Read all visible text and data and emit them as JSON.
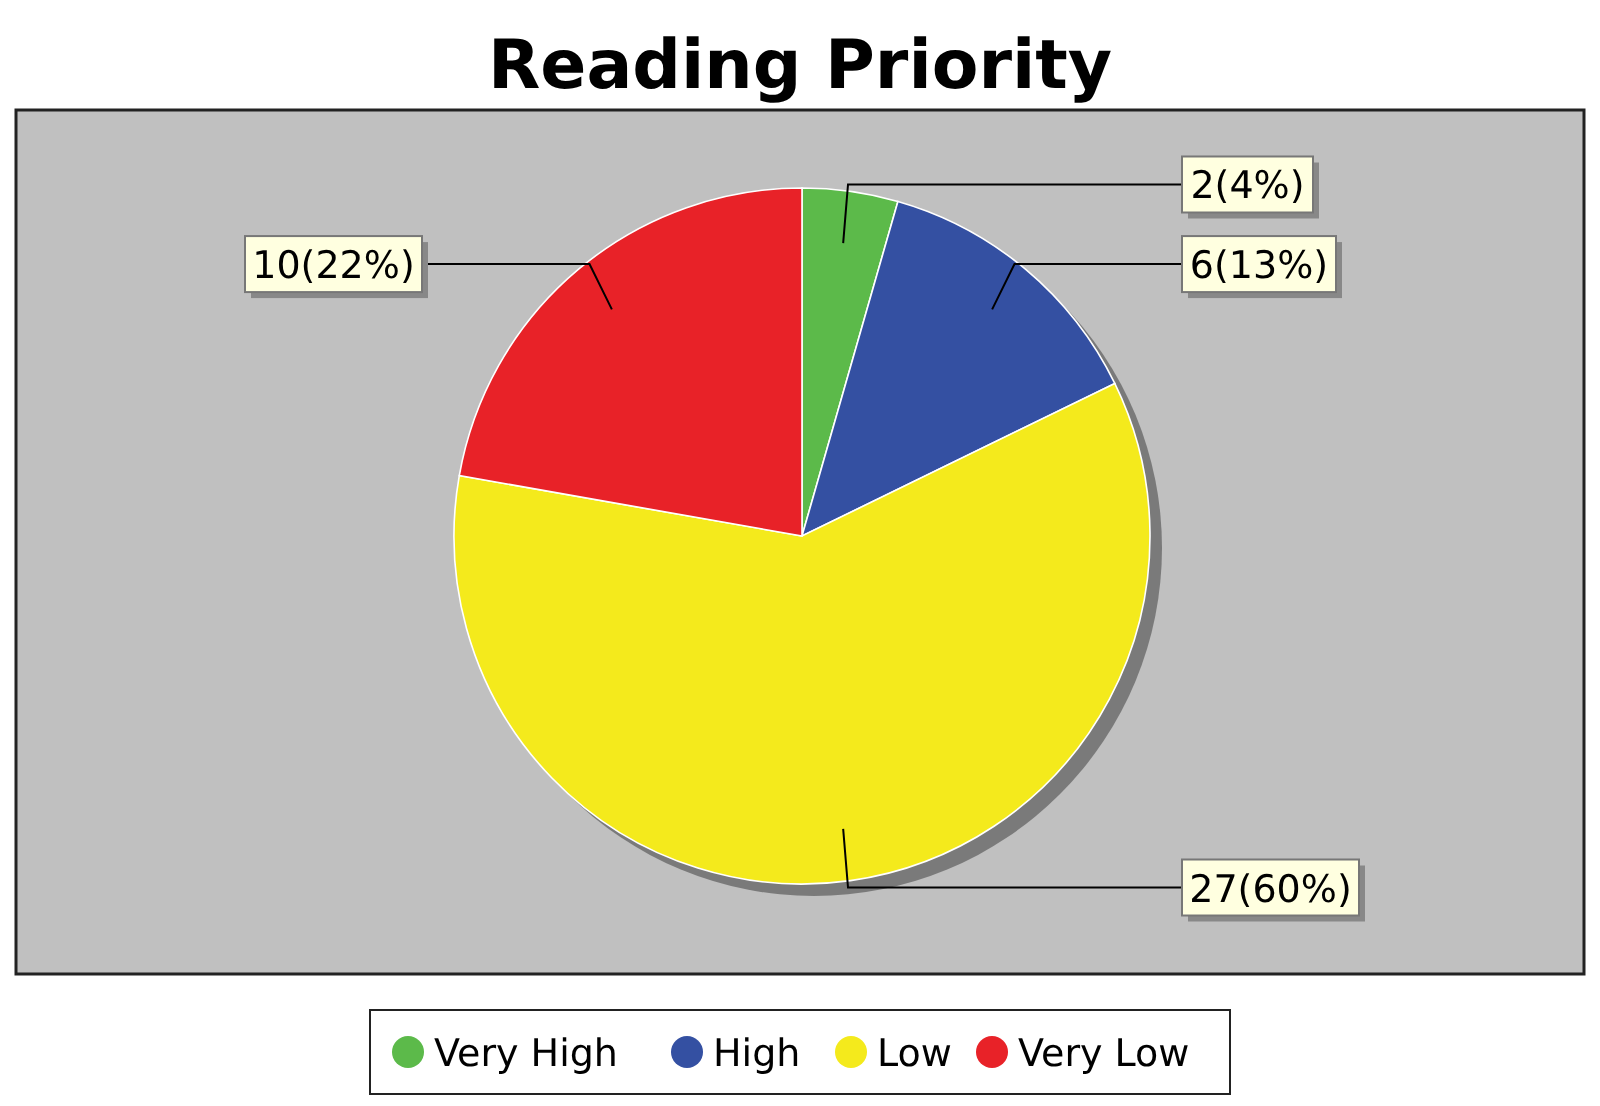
{
  "chart_data": {
    "type": "pie",
    "title": "Reading Priority",
    "categories": [
      "Very High",
      "High",
      "Low",
      "Very Low"
    ],
    "values": [
      2,
      6,
      27,
      10
    ],
    "colors": [
      "#5cba4a",
      "#3450a2",
      "#f4ea1c",
      "#e82228"
    ],
    "value_labels": [
      "2(4%)",
      "6(13%)",
      "27(60%)",
      "10(22%)"
    ],
    "legend": "bottom"
  }
}
